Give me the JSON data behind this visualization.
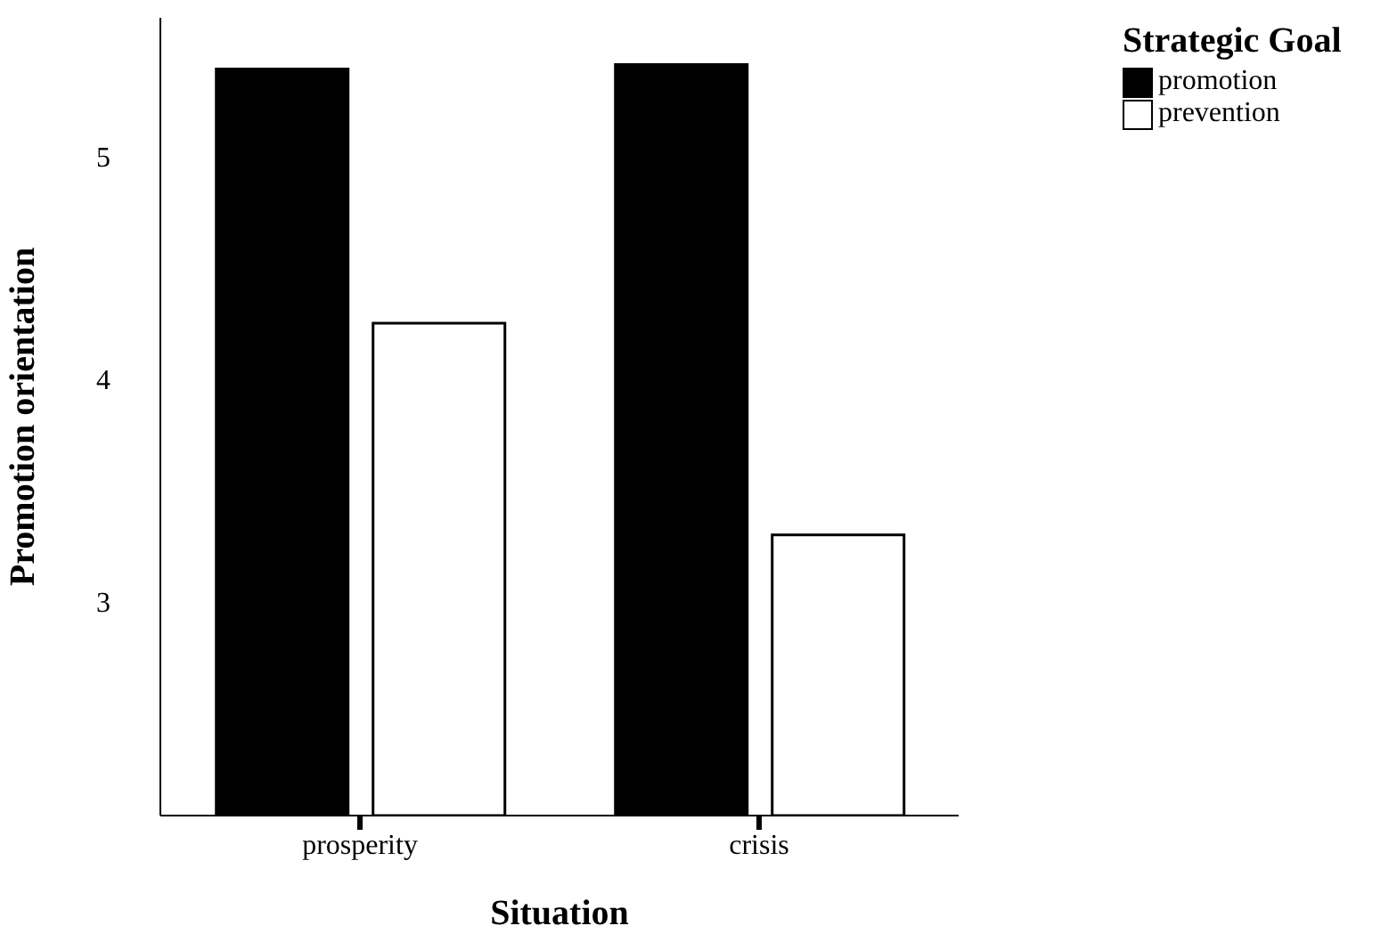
{
  "chart_data": {
    "type": "bar",
    "xlabel": "Situation",
    "ylabel": "Promotion orientation",
    "legend_title": "Strategic Goal",
    "categories": [
      "prosperity",
      "crisis"
    ],
    "series": [
      {
        "name": "promotion",
        "color": "#000000",
        "values": [
          5.39,
          5.41
        ]
      },
      {
        "name": "prevention",
        "color": "#ffffff",
        "values": [
          4.25,
          3.3
        ]
      }
    ],
    "ylim": [
      2.04,
      5.62
    ],
    "yticks": [
      3,
      4,
      5
    ],
    "grid": false,
    "legend": "top right"
  }
}
